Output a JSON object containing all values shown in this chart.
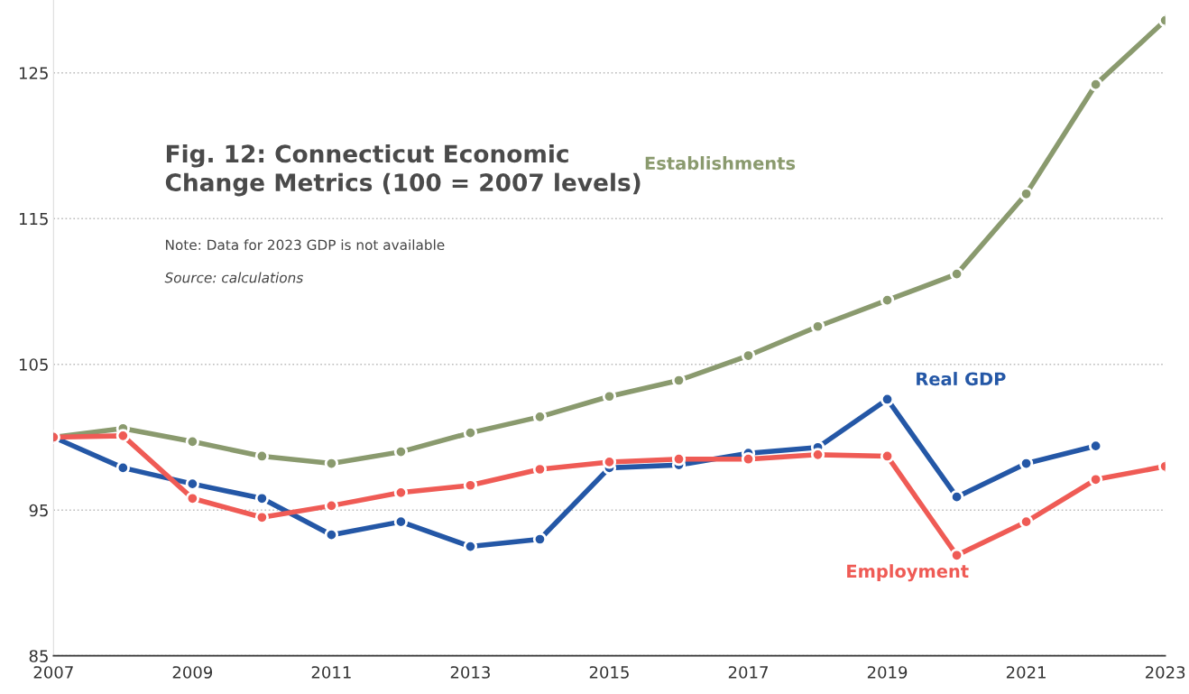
{
  "chart_data": {
    "type": "line",
    "title": "Fig. 12: Connecticut Economic\nChange Metrics (100 = 2007 levels)",
    "annotations": [
      "Note: Data for 2023 GDP is not available",
      "Source: calculations"
    ],
    "x": [
      2007,
      2008,
      2009,
      2010,
      2011,
      2012,
      2013,
      2014,
      2015,
      2016,
      2017,
      2018,
      2019,
      2020,
      2021,
      2022,
      2023
    ],
    "series": [
      {
        "name": "Establishments",
        "color": "#8a9a6e",
        "values": [
          100,
          100.6,
          99.7,
          98.7,
          98.2,
          99.0,
          100.3,
          101.4,
          102.8,
          103.9,
          105.6,
          107.6,
          109.4,
          111.2,
          116.7,
          124.2,
          128.6
        ]
      },
      {
        "name": "Real GDP",
        "color": "#2457a6",
        "values": [
          100,
          97.9,
          96.8,
          95.8,
          93.3,
          94.2,
          92.5,
          93.0,
          97.9,
          98.1,
          98.9,
          99.3,
          102.6,
          95.9,
          98.2,
          99.4,
          null
        ]
      },
      {
        "name": "Employment",
        "color": "#ef5b55",
        "values": [
          100,
          100.1,
          95.8,
          94.5,
          95.3,
          96.2,
          96.7,
          97.8,
          98.3,
          98.5,
          98.5,
          98.8,
          98.7,
          91.9,
          94.2,
          97.1,
          98.0
        ]
      }
    ],
    "xlim": [
      2007,
      2023
    ],
    "ylim": [
      85,
      130
    ],
    "xticks": [
      2007,
      2009,
      2011,
      2013,
      2015,
      2017,
      2019,
      2021,
      2023
    ],
    "yticks": [
      85,
      95,
      105,
      115,
      125
    ],
    "grid": "y",
    "legend": false,
    "marker": "circle",
    "line_style": "solid"
  }
}
